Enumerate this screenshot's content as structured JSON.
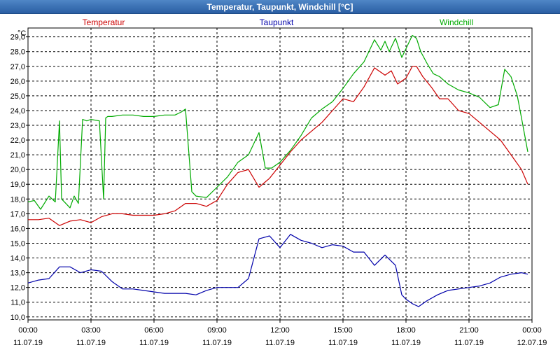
{
  "window": {
    "title": "Temperatur, Taupunkt, Windchill [°C]"
  },
  "chart_data": {
    "type": "line",
    "title": "Temperatur, Taupunkt, Windchill [°C]",
    "ylabel": "°C",
    "xlabel": "",
    "ylim": [
      9.8,
      29.6
    ],
    "xlim": [
      0,
      24
    ],
    "grid": true,
    "y_ticks": [
      "10,0",
      "11,0",
      "12,0",
      "13,0",
      "14,0",
      "15,0",
      "16,0",
      "17,0",
      "18,0",
      "19,0",
      "20,0",
      "21,0",
      "22,0",
      "23,0",
      "24,0",
      "25,0",
      "26,0",
      "27,0",
      "28,0",
      "29,0"
    ],
    "x_ticks": [
      {
        "time": "00:00",
        "date": "11.07.19"
      },
      {
        "time": "03:00",
        "date": "11.07.19"
      },
      {
        "time": "06:00",
        "date": "11.07.19"
      },
      {
        "time": "09:00",
        "date": "11.07.19"
      },
      {
        "time": "12:00",
        "date": "11.07.19"
      },
      {
        "time": "15:00",
        "date": "11.07.19"
      },
      {
        "time": "18:00",
        "date": "11.07.19"
      },
      {
        "time": "21:00",
        "date": "11.07.19"
      },
      {
        "time": "00:00",
        "date": "12.07.19"
      }
    ],
    "series": [
      {
        "name": "Temperatur",
        "color": "#cc0000",
        "x": [
          0,
          0.5,
          1.0,
          1.5,
          2.0,
          2.5,
          3.0,
          3.5,
          4.0,
          4.5,
          5.0,
          5.5,
          6.0,
          6.5,
          7.0,
          7.5,
          8.0,
          8.5,
          9.0,
          9.5,
          10.0,
          10.5,
          11.0,
          11.5,
          12.0,
          12.5,
          13.0,
          13.5,
          14.0,
          14.5,
          15.0,
          15.5,
          16.0,
          16.5,
          17.0,
          17.3,
          17.6,
          18.0,
          18.3,
          18.5,
          18.8,
          19.2,
          19.6,
          20.0,
          20.5,
          21.0,
          21.5,
          22.0,
          22.5,
          23.0,
          23.5,
          23.8
        ],
        "values": [
          16.6,
          16.6,
          16.7,
          16.2,
          16.5,
          16.6,
          16.4,
          16.8,
          17.0,
          17.0,
          16.9,
          16.9,
          16.9,
          17.0,
          17.2,
          17.7,
          17.7,
          17.5,
          17.9,
          19.0,
          19.8,
          20.0,
          18.8,
          19.4,
          20.3,
          21.2,
          22.0,
          22.6,
          23.2,
          24.0,
          24.8,
          24.6,
          25.6,
          26.9,
          26.4,
          26.7,
          25.8,
          26.2,
          27.0,
          27.0,
          26.3,
          25.6,
          24.8,
          24.8,
          24.0,
          23.8,
          23.2,
          22.6,
          22.0,
          21.0,
          20.0,
          19.0
        ]
      },
      {
        "name": "Taupunkt",
        "color": "#0000aa",
        "x": [
          0,
          0.5,
          1.0,
          1.5,
          2.0,
          2.5,
          3.0,
          3.5,
          4.0,
          4.5,
          5.0,
          5.5,
          6.0,
          6.5,
          7.0,
          7.5,
          8.0,
          8.5,
          9.0,
          9.5,
          10.0,
          10.5,
          11.0,
          11.5,
          12.0,
          12.5,
          13.0,
          13.5,
          14.0,
          14.5,
          15.0,
          15.5,
          16.0,
          16.5,
          17.0,
          17.5,
          17.8,
          18.0,
          18.3,
          18.6,
          19.0,
          19.5,
          20.0,
          20.5,
          21.0,
          21.5,
          22.0,
          22.5,
          23.0,
          23.5,
          23.8
        ],
        "values": [
          12.3,
          12.5,
          12.6,
          13.4,
          13.4,
          13.0,
          13.2,
          13.1,
          12.4,
          11.9,
          11.9,
          11.8,
          11.7,
          11.6,
          11.6,
          11.6,
          11.5,
          11.8,
          12.0,
          12.0,
          12.0,
          12.6,
          15.3,
          15.5,
          14.7,
          15.6,
          15.2,
          15.0,
          14.7,
          14.9,
          14.8,
          14.4,
          14.4,
          13.5,
          14.2,
          13.5,
          11.5,
          11.2,
          10.9,
          10.7,
          11.1,
          11.5,
          11.8,
          11.9,
          12.0,
          12.1,
          12.3,
          12.7,
          12.9,
          13.0,
          12.9
        ]
      },
      {
        "name": "Windchill",
        "color": "#00aa00",
        "x": [
          0,
          0.3,
          0.6,
          1.0,
          1.3,
          1.5,
          1.6,
          1.8,
          2.0,
          2.2,
          2.4,
          2.6,
          2.8,
          3.0,
          3.4,
          3.6,
          3.7,
          3.8,
          4.0,
          4.5,
          5.0,
          5.5,
          6.0,
          6.5,
          7.0,
          7.3,
          7.5,
          7.8,
          8.0,
          8.5,
          9.0,
          9.5,
          10.0,
          10.5,
          11.0,
          11.3,
          11.6,
          12.0,
          12.5,
          13.0,
          13.5,
          14.0,
          14.5,
          15.0,
          15.5,
          16.0,
          16.5,
          16.8,
          17.0,
          17.2,
          17.5,
          17.8,
          18.0,
          18.3,
          18.5,
          18.7,
          19.0,
          19.3,
          19.6,
          20.0,
          20.5,
          21.0,
          21.5,
          22.0,
          22.4,
          22.7,
          23.0,
          23.3,
          23.5,
          23.8
        ],
        "values": [
          17.8,
          17.9,
          17.3,
          18.2,
          17.8,
          23.3,
          18.0,
          17.7,
          17.4,
          18.2,
          17.7,
          23.4,
          23.3,
          23.4,
          23.3,
          18.0,
          23.5,
          23.6,
          23.6,
          23.7,
          23.7,
          23.6,
          23.6,
          23.7,
          23.7,
          23.9,
          24.1,
          18.5,
          18.2,
          18.1,
          18.8,
          19.5,
          20.5,
          21.0,
          22.5,
          20.1,
          20.1,
          20.5,
          21.3,
          22.3,
          23.5,
          24.1,
          24.6,
          25.5,
          26.5,
          27.3,
          28.8,
          28.1,
          28.7,
          28.0,
          28.9,
          27.6,
          28.2,
          29.1,
          28.9,
          28.0,
          27.2,
          26.5,
          26.3,
          25.8,
          25.4,
          25.2,
          24.9,
          24.2,
          24.4,
          26.8,
          26.3,
          25.0,
          23.5,
          21.2
        ]
      }
    ]
  }
}
